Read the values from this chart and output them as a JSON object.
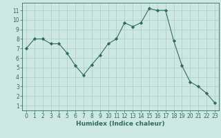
{
  "x": [
    0,
    1,
    2,
    3,
    4,
    5,
    6,
    7,
    8,
    9,
    10,
    11,
    12,
    13,
    14,
    15,
    16,
    17,
    18,
    19,
    20,
    21,
    22,
    23
  ],
  "y": [
    7,
    8,
    8,
    7.5,
    7.5,
    6.5,
    5.2,
    4.2,
    5.3,
    6.3,
    7.5,
    8,
    9.7,
    9.3,
    9.7,
    11.2,
    11,
    11,
    7.8,
    5.2,
    3.5,
    3,
    2.3,
    1.3
  ],
  "line_color": "#2e6b5e",
  "marker": "D",
  "marker_size": 2.2,
  "bg_color": "#cde8e2",
  "grid_major_color": "#b0cbc6",
  "grid_minor_color": "#dde8e5",
  "xlabel": "Humidex (Indice chaleur)",
  "xlim": [
    -0.5,
    23.5
  ],
  "ylim": [
    0.5,
    11.8
  ],
  "yticks": [
    1,
    2,
    3,
    4,
    5,
    6,
    7,
    8,
    9,
    10,
    11
  ],
  "xticks": [
    0,
    1,
    2,
    3,
    4,
    5,
    6,
    7,
    8,
    9,
    10,
    11,
    12,
    13,
    14,
    15,
    16,
    17,
    18,
    19,
    20,
    21,
    22,
    23
  ],
  "axis_color": "#2e6b5e",
  "tick_font_size": 5.5,
  "label_font_size": 6.5,
  "line_width": 0.8
}
